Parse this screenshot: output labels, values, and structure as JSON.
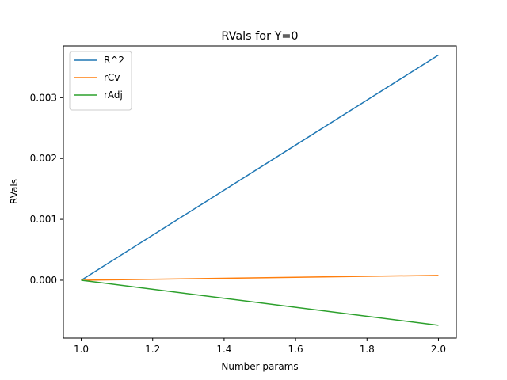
{
  "chart_data": {
    "type": "line",
    "title": "RVals for Y=0",
    "xlabel": "Number params",
    "ylabel": "RVals",
    "x": [
      1.0,
      2.0
    ],
    "xlim": [
      0.95,
      2.05
    ],
    "ylim": [
      -0.00095,
      0.00385
    ],
    "xticks": [
      1.0,
      1.2,
      1.4,
      1.6,
      1.8,
      2.0
    ],
    "xtick_labels": [
      "1.0",
      "1.2",
      "1.4",
      "1.6",
      "1.8",
      "2.0"
    ],
    "yticks": [
      0.0,
      0.001,
      0.002,
      0.003
    ],
    "ytick_labels": [
      "0.000",
      "0.001",
      "0.002",
      "0.003"
    ],
    "grid": false,
    "legend_position": "top-left",
    "series": [
      {
        "name": "R^2",
        "color": "#1f77b4",
        "values": [
          0.0,
          0.0037
        ]
      },
      {
        "name": "rCv",
        "color": "#ff7f0e",
        "values": [
          0.0,
          8e-05
        ]
      },
      {
        "name": "rAdj",
        "color": "#2ca02c",
        "values": [
          0.0,
          -0.00074
        ]
      }
    ]
  }
}
